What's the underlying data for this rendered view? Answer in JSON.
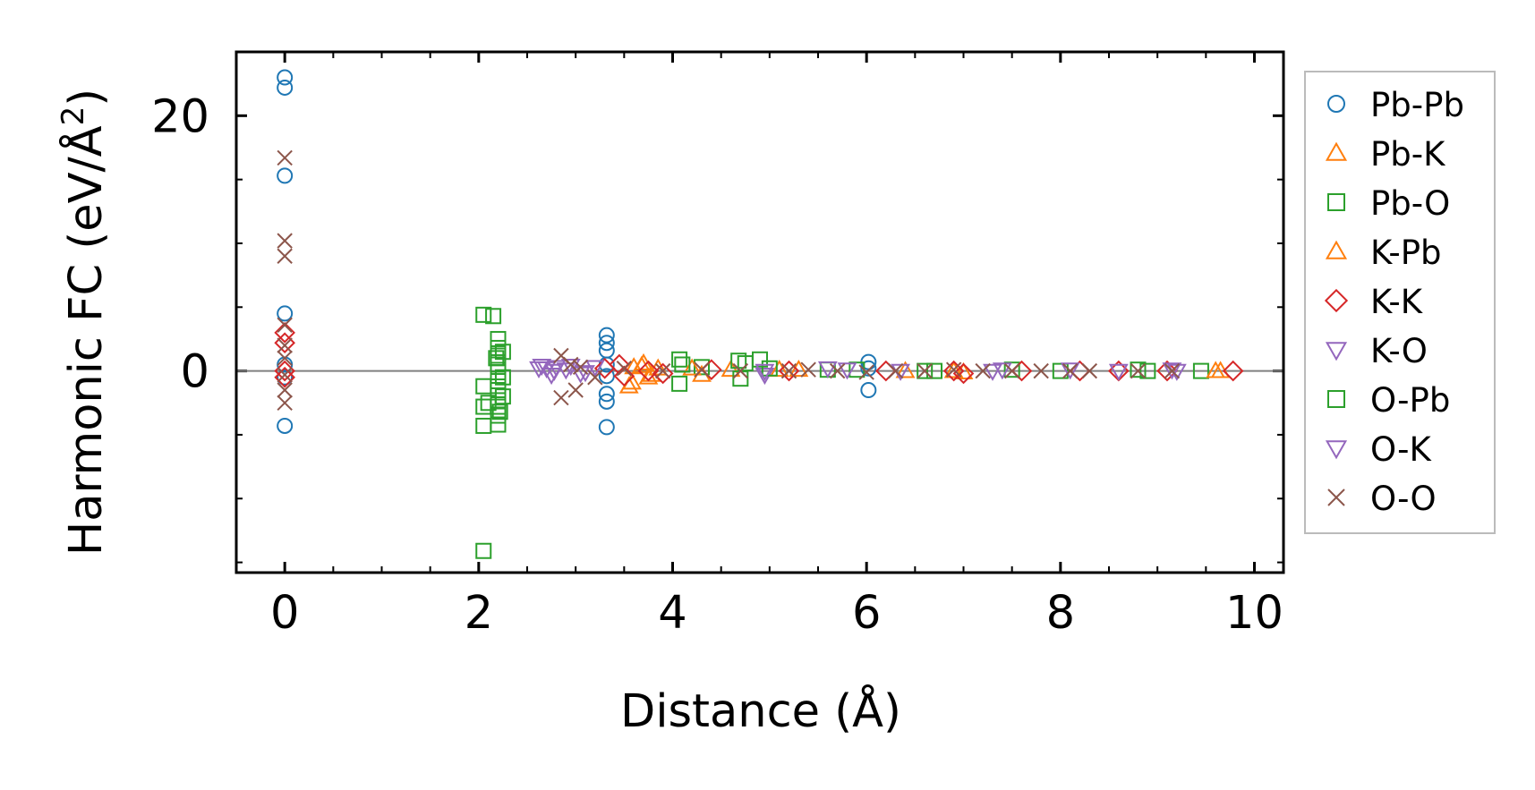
{
  "chart_data": {
    "type": "scatter",
    "title": "",
    "xlabel": "Distance (Å)",
    "ylabel_main": "Harmonic FC (eV/Å",
    "ylabel_sup": "2",
    "ylabel_close": ")",
    "xlim": [
      -0.5,
      10.3
    ],
    "ylim": [
      -15.8,
      25
    ],
    "x_ticks": [
      0,
      2,
      4,
      6,
      8,
      10
    ],
    "x_tick_labels": [
      "0",
      "2",
      "4",
      "6",
      "8",
      "10"
    ],
    "x_minor_step": 0.5,
    "y_ticks": [
      0,
      20
    ],
    "y_tick_labels": [
      "0",
      "20"
    ],
    "y_minor_step": 5,
    "zero_line": true,
    "grid": false,
    "legend_position": "outside-right",
    "series": [
      {
        "name": "Pb-Pb",
        "marker": "circle",
        "color": "#1f77b4",
        "points": [
          [
            0,
            23
          ],
          [
            0,
            22.2
          ],
          [
            0,
            15.3
          ],
          [
            0,
            4.5
          ],
          [
            0,
            -4.3
          ],
          [
            0,
            0.5
          ],
          [
            0,
            -0.5
          ],
          [
            3.32,
            2.8
          ],
          [
            3.32,
            2.2
          ],
          [
            3.32,
            1.6
          ],
          [
            3.32,
            -1.8
          ],
          [
            3.32,
            -2.4
          ],
          [
            3.32,
            -4.4
          ],
          [
            3.32,
            0.5
          ],
          [
            3.32,
            -0.4
          ],
          [
            6.02,
            0.7
          ],
          [
            6.02,
            -1.5
          ],
          [
            6.02,
            0.2
          ]
        ]
      },
      {
        "name": "Pb-K",
        "marker": "triangle-up",
        "color": "#ff7f0e",
        "points": [
          [
            3.55,
            -1.2
          ],
          [
            3.6,
            0.3
          ],
          [
            3.7,
            0.6
          ],
          [
            3.75,
            -0.5
          ],
          [
            3.85,
            0.2
          ],
          [
            4.3,
            -0.3
          ],
          [
            4.6,
            0.1
          ],
          [
            5.1,
            0.1
          ],
          [
            6.4,
            0.0
          ],
          [
            7.0,
            -0.1
          ],
          [
            9.65,
            0.0
          ]
        ]
      },
      {
        "name": "Pb-O",
        "marker": "square",
        "color": "#2ca02c",
        "points": [
          [
            2.05,
            4.4
          ],
          [
            2.05,
            -1.2
          ],
          [
            2.05,
            -2.8
          ],
          [
            2.05,
            -4.3
          ],
          [
            2.05,
            -14.1
          ],
          [
            2.2,
            2.5
          ],
          [
            2.2,
            1.8
          ],
          [
            2.2,
            1.2
          ],
          [
            2.2,
            0.5
          ],
          [
            2.2,
            -0.1
          ],
          [
            2.2,
            -0.8
          ],
          [
            2.2,
            -1.5
          ],
          [
            2.2,
            -2.3
          ],
          [
            2.2,
            -2.8
          ],
          [
            2.2,
            -3.5
          ],
          [
            2.2,
            -4.2
          ],
          [
            2.25,
            1.5
          ],
          [
            2.25,
            -0.5
          ],
          [
            2.25,
            -2.0
          ],
          [
            4.07,
            0.9
          ],
          [
            4.07,
            -1.0
          ],
          [
            4.3,
            0.3
          ],
          [
            4.68,
            0.8
          ],
          [
            4.9,
            0.9
          ],
          [
            4.7,
            -0.6
          ],
          [
            5.6,
            0.1
          ],
          [
            5.9,
            0.1
          ],
          [
            6.6,
            0.0
          ],
          [
            7.5,
            0.1
          ],
          [
            8.0,
            0.0
          ],
          [
            8.8,
            0.1
          ],
          [
            9.45,
            0.0
          ]
        ]
      },
      {
        "name": "K-Pb",
        "marker": "triangle-up",
        "color": "#ff7f0e",
        "points": [
          [
            3.58,
            -0.9
          ],
          [
            3.68,
            0.4
          ],
          [
            3.78,
            -0.3
          ],
          [
            4.2,
            0.2
          ],
          [
            5.3,
            0.1
          ],
          [
            6.9,
            0.0
          ],
          [
            9.6,
            0.0
          ]
        ]
      },
      {
        "name": "K-K",
        "marker": "diamond",
        "color": "#d62728",
        "points": [
          [
            0,
            3.0
          ],
          [
            0,
            2.2
          ],
          [
            0,
            0.0
          ],
          [
            0,
            -0.5
          ],
          [
            3.3,
            0.2
          ],
          [
            3.45,
            0.5
          ],
          [
            3.5,
            -0.4
          ],
          [
            3.75,
            0.0
          ],
          [
            3.9,
            -0.2
          ],
          [
            4.4,
            0.1
          ],
          [
            5.2,
            0.0
          ],
          [
            6.2,
            0.0
          ],
          [
            6.9,
            0.0
          ],
          [
            7.0,
            -0.2
          ],
          [
            7.6,
            0.0
          ],
          [
            8.2,
            0.0
          ],
          [
            8.6,
            0.0
          ],
          [
            9.1,
            0.0
          ],
          [
            9.78,
            0.0
          ]
        ]
      },
      {
        "name": "K-O",
        "marker": "triangle-down",
        "color": "#9467bd",
        "points": [
          [
            2.65,
            0.4
          ],
          [
            2.7,
            0.2
          ],
          [
            2.75,
            -0.3
          ],
          [
            2.8,
            0.3
          ],
          [
            2.9,
            0.1
          ],
          [
            3.05,
            -0.2
          ],
          [
            3.2,
            0.3
          ],
          [
            4.95,
            -0.3
          ],
          [
            5.6,
            0.2
          ],
          [
            6.35,
            0.0
          ],
          [
            7.4,
            0.1
          ],
          [
            8.6,
            0.0
          ],
          [
            9.15,
            0.1
          ]
        ]
      },
      {
        "name": "O-Pb",
        "marker": "square",
        "color": "#2ca02c",
        "points": [
          [
            2.15,
            4.3
          ],
          [
            2.1,
            -2.5
          ],
          [
            2.18,
            1.0
          ],
          [
            2.22,
            -3.2
          ],
          [
            4.1,
            0.5
          ],
          [
            4.75,
            0.6
          ],
          [
            5.0,
            0.2
          ],
          [
            6.7,
            0.0
          ],
          [
            8.9,
            0.0
          ]
        ]
      },
      {
        "name": "O-K",
        "marker": "triangle-down",
        "color": "#9467bd",
        "points": [
          [
            2.62,
            0.2
          ],
          [
            2.78,
            0.0
          ],
          [
            2.95,
            0.4
          ],
          [
            3.1,
            -0.1
          ],
          [
            4.95,
            0.0
          ],
          [
            5.8,
            0.1
          ],
          [
            7.3,
            0.0
          ],
          [
            8.1,
            0.1
          ],
          [
            9.2,
            0.0
          ]
        ]
      },
      {
        "name": "O-O",
        "marker": "x",
        "color": "#8c564b",
        "points": [
          [
            0,
            16.7
          ],
          [
            0,
            10.2
          ],
          [
            0,
            9.0
          ],
          [
            0,
            3.6
          ],
          [
            0,
            2.0
          ],
          [
            0,
            1.0
          ],
          [
            0,
            -0.3
          ],
          [
            0,
            -1.5
          ],
          [
            0,
            -2.5
          ],
          [
            2.85,
            1.2
          ],
          [
            2.85,
            -2.1
          ],
          [
            2.95,
            0.5
          ],
          [
            3.0,
            -1.5
          ],
          [
            3.05,
            0.3
          ],
          [
            3.2,
            -0.5
          ],
          [
            3.5,
            0.2
          ],
          [
            3.9,
            0.0
          ],
          [
            4.3,
            0.1
          ],
          [
            4.7,
            0.0
          ],
          [
            5.2,
            0.0
          ],
          [
            5.4,
            0.1
          ],
          [
            5.7,
            0.0
          ],
          [
            6.0,
            -0.1
          ],
          [
            6.3,
            0.0
          ],
          [
            6.6,
            0.0
          ],
          [
            6.9,
            0.1
          ],
          [
            7.2,
            0.0
          ],
          [
            7.5,
            0.0
          ],
          [
            7.8,
            0.0
          ],
          [
            8.1,
            0.0
          ],
          [
            8.3,
            0.0
          ],
          [
            8.8,
            0.0
          ],
          [
            9.15,
            0.0
          ]
        ]
      }
    ]
  }
}
